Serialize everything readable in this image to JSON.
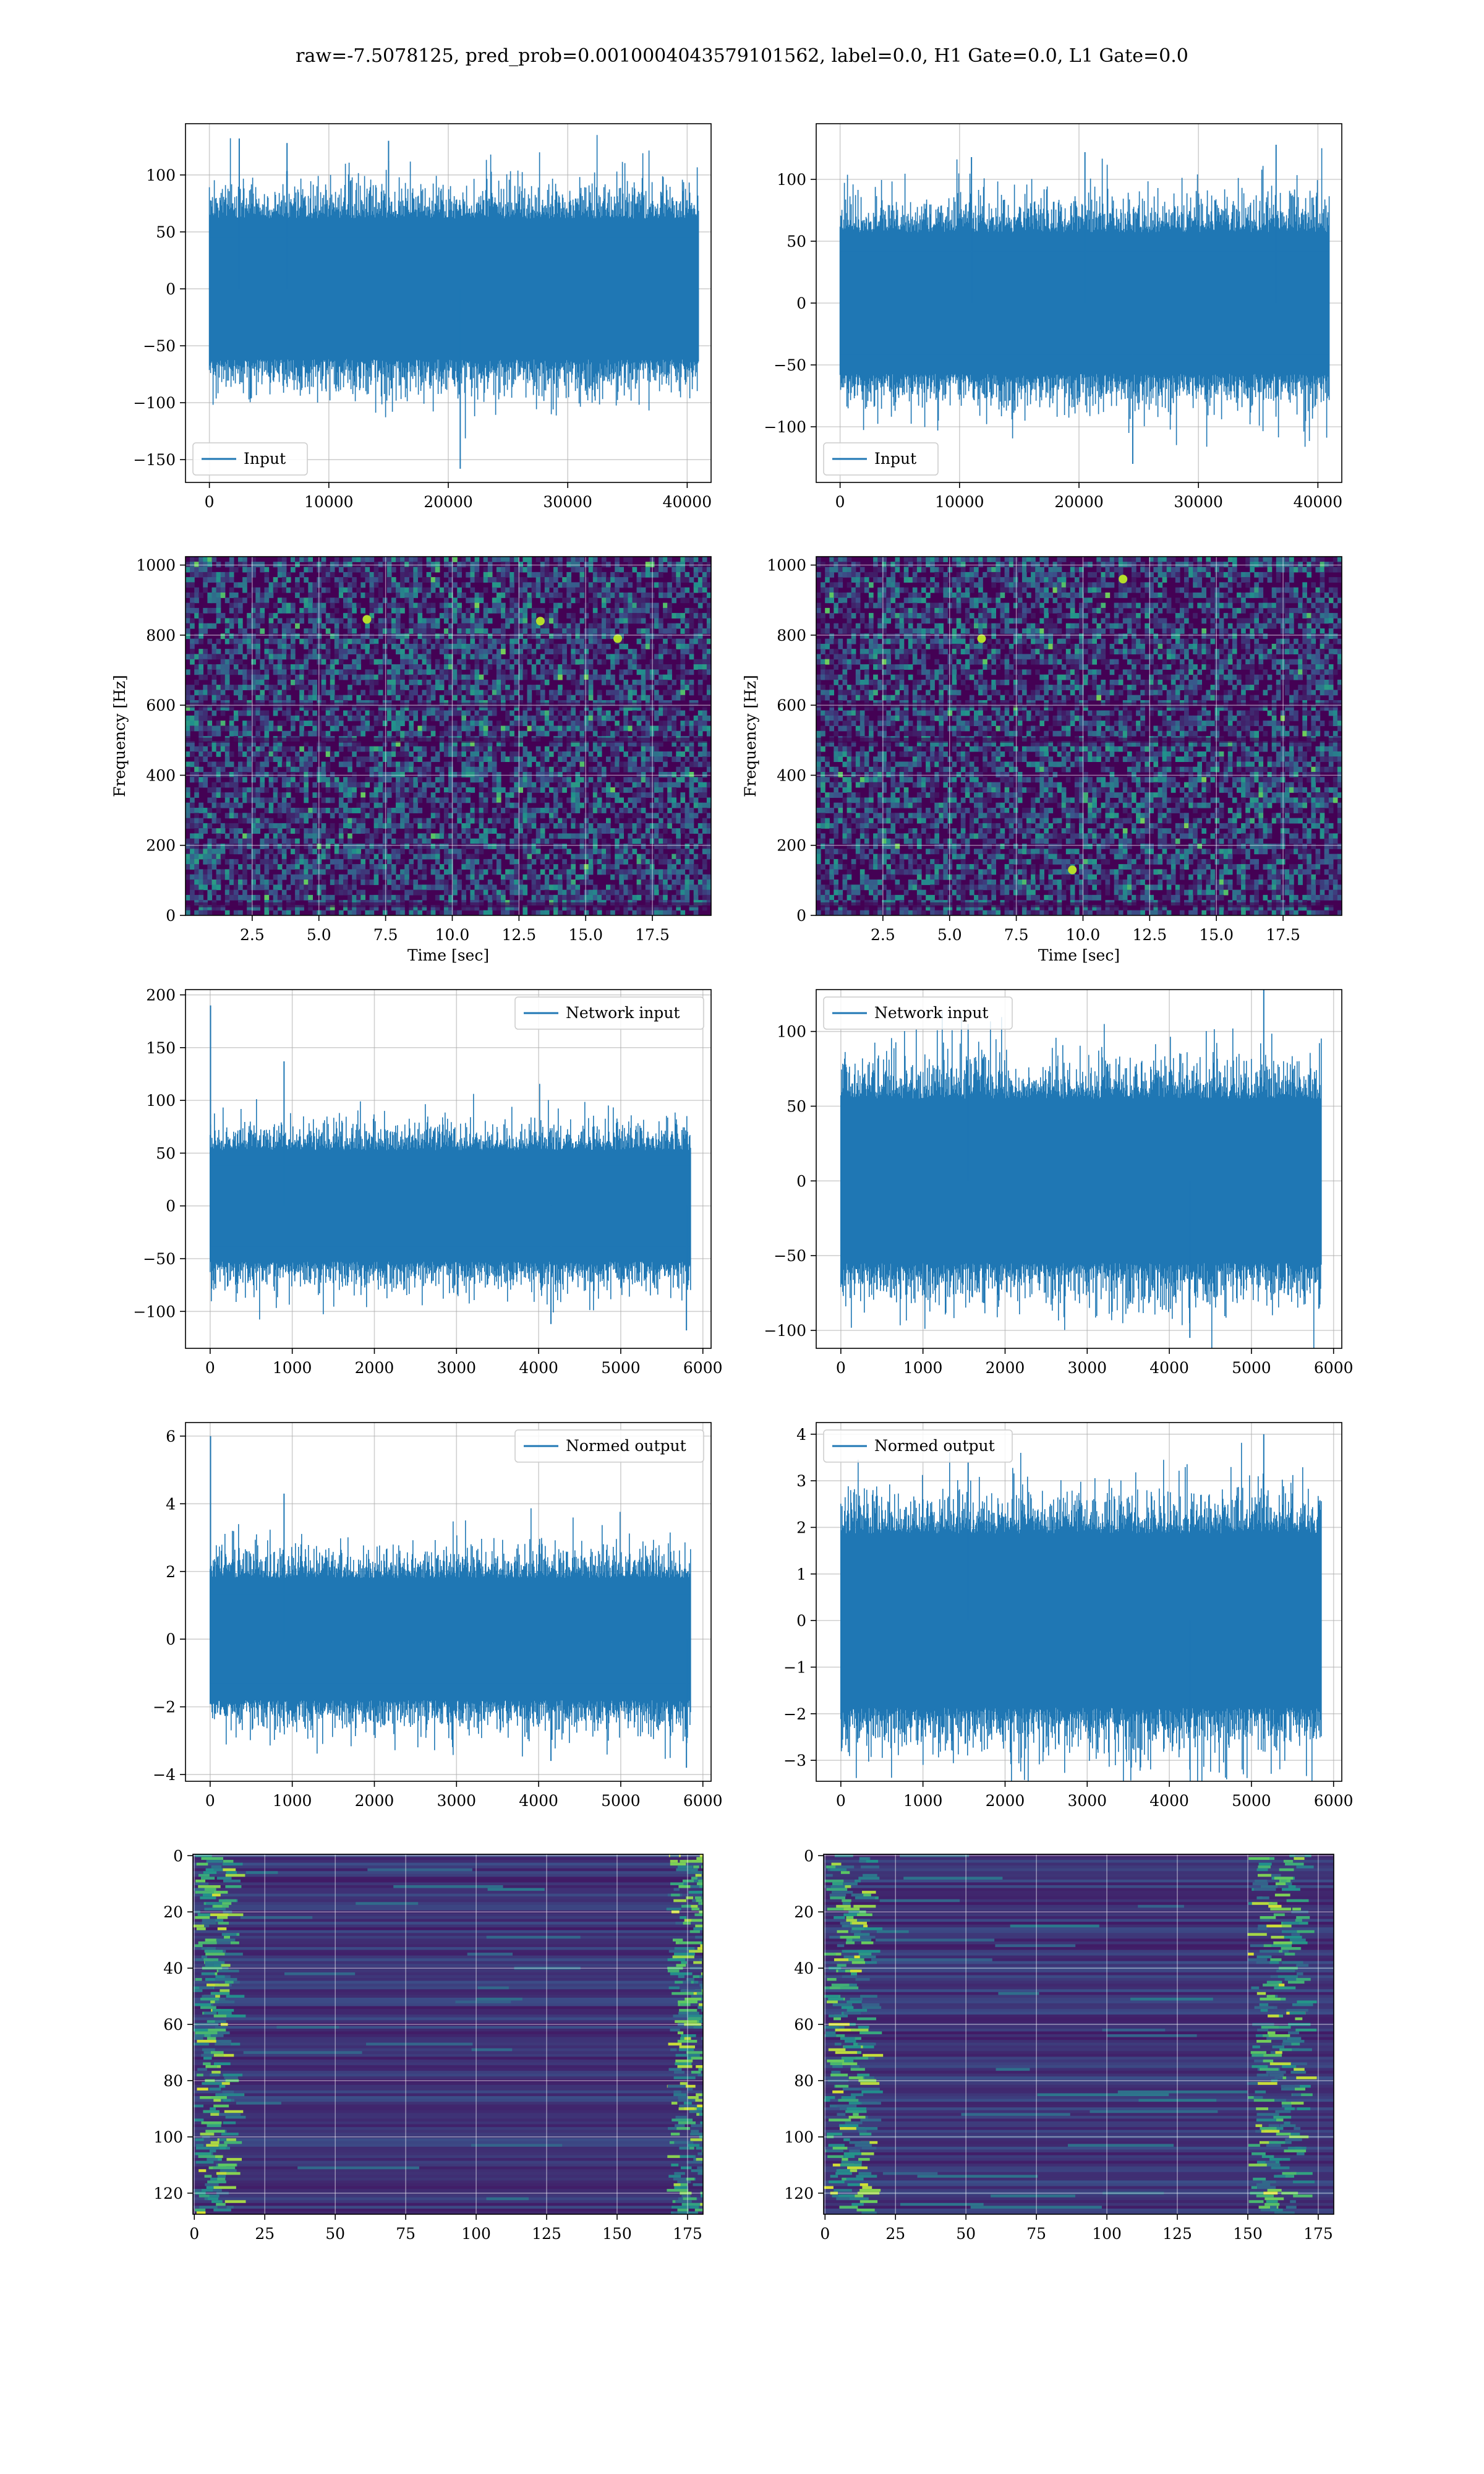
{
  "figure": {
    "suptitle": "raw=-7.5078125, pred_prob=0.0010004043579101562, label=0.0, H1 Gate=0.0, L1 Gate=0.0"
  },
  "colors": {
    "line": "#1f77b4",
    "grid": "#b0b0b0",
    "viridis_low": "#440154",
    "viridis_mid": "#21918c",
    "viridis_high": "#fde725"
  },
  "chart_data": [
    {
      "id": "input-h1",
      "type": "line",
      "legend": "Input",
      "legend_loc": "lower-left",
      "xlim": [
        -2000,
        42000
      ],
      "ylim": [
        -170,
        145
      ],
      "xticks": [
        0,
        10000,
        20000,
        30000,
        40000
      ],
      "yticks": [
        -150,
        -100,
        -50,
        0,
        50,
        100
      ],
      "x_range": [
        0,
        40960
      ],
      "envelope_rms": 28,
      "extremes": [
        {
          "x": 21000,
          "y": -158
        },
        {
          "x": 2500,
          "y": 132
        },
        {
          "x": 6500,
          "y": 128
        },
        {
          "x": 15000,
          "y": 130
        }
      ],
      "grid": true
    },
    {
      "id": "input-l1",
      "type": "line",
      "legend": "Input",
      "legend_loc": "lower-left",
      "xlim": [
        -2000,
        42000
      ],
      "ylim": [
        -145,
        145
      ],
      "xticks": [
        0,
        10000,
        20000,
        30000,
        40000
      ],
      "yticks": [
        -100,
        -50,
        0,
        50,
        100
      ],
      "x_range": [
        0,
        40960
      ],
      "envelope_rms": 26,
      "extremes": [
        {
          "x": 24500,
          "y": -130
        },
        {
          "x": 20500,
          "y": 122
        },
        {
          "x": 36500,
          "y": 128
        },
        {
          "x": 11000,
          "y": 118
        }
      ],
      "grid": true
    },
    {
      "id": "spec-h1",
      "type": "heatmap",
      "colormap": "viridis",
      "xlim": [
        0,
        19.7
      ],
      "ylim": [
        0,
        1024
      ],
      "xticks": [
        2.5,
        5.0,
        7.5,
        10.0,
        12.5,
        15.0,
        17.5
      ],
      "yticks": [
        0,
        200,
        400,
        600,
        800,
        1000
      ],
      "xlabel": "Time [sec]",
      "ylabel": "Frequency [Hz]",
      "hot_spots": [
        {
          "x": 13.3,
          "y": 840
        },
        {
          "x": 6.8,
          "y": 845
        },
        {
          "x": 16.2,
          "y": 790
        }
      ],
      "grid": true
    },
    {
      "id": "spec-l1",
      "type": "heatmap",
      "colormap": "viridis",
      "xlim": [
        0,
        19.7
      ],
      "ylim": [
        0,
        1024
      ],
      "xticks": [
        2.5,
        5.0,
        7.5,
        10.0,
        12.5,
        15.0,
        17.5
      ],
      "yticks": [
        0,
        200,
        400,
        600,
        800,
        1000
      ],
      "xlabel": "Time [sec]",
      "ylabel": "Frequency [Hz]",
      "hot_spots": [
        {
          "x": 9.6,
          "y": 130
        },
        {
          "x": 11.5,
          "y": 960
        },
        {
          "x": 6.2,
          "y": 790
        }
      ],
      "grid": true
    },
    {
      "id": "netin-h1",
      "type": "line",
      "legend": "Network input",
      "legend_loc": "upper-right",
      "xlim": [
        -300,
        6100
      ],
      "ylim": [
        -135,
        205
      ],
      "xticks": [
        0,
        1000,
        2000,
        3000,
        4000,
        5000,
        6000
      ],
      "yticks": [
        -100,
        -50,
        0,
        50,
        100,
        150,
        200
      ],
      "x_range": [
        0,
        5850
      ],
      "envelope_rms": 24,
      "extremes": [
        {
          "x": 5,
          "y": 190
        },
        {
          "x": 900,
          "y": 137
        },
        {
          "x": 5800,
          "y": -118
        },
        {
          "x": 4150,
          "y": -112
        }
      ],
      "grid": true
    },
    {
      "id": "netin-l1",
      "type": "line",
      "legend": "Network input",
      "legend_loc": "upper-left",
      "xlim": [
        -300,
        6100
      ],
      "ylim": [
        -112,
        128
      ],
      "xticks": [
        0,
        1000,
        2000,
        3000,
        4000,
        5000,
        6000
      ],
      "yticks": [
        -100,
        -50,
        0,
        50,
        100
      ],
      "x_range": [
        0,
        5850
      ],
      "envelope_rms": 25,
      "extremes": [
        {
          "x": 5150,
          "y": 128
        },
        {
          "x": 4250,
          "y": -105
        },
        {
          "x": 1550,
          "y": 105
        }
      ],
      "grid": true
    },
    {
      "id": "normed-h1",
      "type": "line",
      "legend": "Normed output",
      "legend_loc": "upper-right",
      "xlim": [
        -300,
        6100
      ],
      "ylim": [
        -4.2,
        6.4
      ],
      "xticks": [
        0,
        1000,
        2000,
        3000,
        4000,
        5000,
        6000
      ],
      "yticks": [
        -4,
        -2,
        0,
        2,
        4,
        6
      ],
      "x_range": [
        0,
        5850
      ],
      "envelope_rms": 0.82,
      "extremes": [
        {
          "x": 5,
          "y": 6.0
        },
        {
          "x": 900,
          "y": 4.3
        },
        {
          "x": 5800,
          "y": -3.8
        },
        {
          "x": 4150,
          "y": -3.6
        }
      ],
      "grid": true
    },
    {
      "id": "normed-l1",
      "type": "line",
      "legend": "Normed output",
      "legend_loc": "upper-left",
      "xlim": [
        -300,
        6100
      ],
      "ylim": [
        -3.45,
        4.25
      ],
      "xticks": [
        0,
        1000,
        2000,
        3000,
        4000,
        5000,
        6000
      ],
      "yticks": [
        -3,
        -2,
        -1,
        0,
        1,
        2,
        3,
        4
      ],
      "x_range": [
        0,
        5850
      ],
      "envelope_rms": 0.85,
      "extremes": [
        {
          "x": 5150,
          "y": 4.0
        },
        {
          "x": 4250,
          "y": -3.2
        },
        {
          "x": 1550,
          "y": 3.4
        }
      ],
      "grid": true
    },
    {
      "id": "feat-h1",
      "type": "heatmap",
      "colormap": "viridis",
      "xlim": [
        -0.5,
        180.5
      ],
      "ylim": [
        127.5,
        -0.5
      ],
      "xticks": [
        0,
        25,
        50,
        75,
        100,
        125,
        150,
        175
      ],
      "yticks": [
        0,
        20,
        40,
        60,
        80,
        100,
        120
      ],
      "rows": 128,
      "cols": 181,
      "bright_columns": [
        [
          0,
          12
        ],
        [
          168,
          181
        ]
      ],
      "grid": true
    },
    {
      "id": "feat-l1",
      "type": "heatmap",
      "colormap": "viridis",
      "xlim": [
        -0.5,
        180.5
      ],
      "ylim": [
        127.5,
        -0.5
      ],
      "xticks": [
        0,
        25,
        50,
        75,
        100,
        125,
        150,
        175
      ],
      "yticks": [
        0,
        20,
        40,
        60,
        80,
        100,
        120
      ],
      "rows": 128,
      "cols": 181,
      "bright_columns": [
        [
          0,
          14
        ],
        [
          150,
          168
        ]
      ],
      "grid": true
    }
  ]
}
